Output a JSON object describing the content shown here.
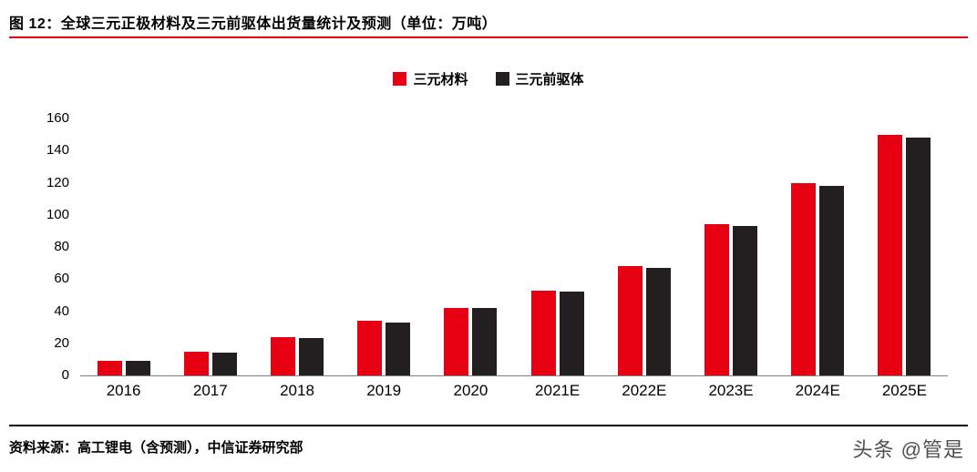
{
  "figure": {
    "title": "图 12：全球三元正极材料及三元前驱体出货量统计及预测（单位：万吨）",
    "source": "资料来源：高工锂电（含预测），中信证券研究部",
    "accent_color": "#e60012"
  },
  "watermark": {
    "text": "头条 @管是"
  },
  "chart_data": {
    "type": "bar",
    "title": "全球三元正极材料及三元前驱体出货量统计及预测",
    "unit": "万吨",
    "categories": [
      "2016",
      "2017",
      "2018",
      "2019",
      "2020",
      "2021E",
      "2022E",
      "2023E",
      "2024E",
      "2025E"
    ],
    "series": [
      {
        "name": "三元材料",
        "color": "#e60012",
        "values": [
          9,
          15,
          24,
          34,
          42,
          53,
          68,
          94,
          120,
          150
        ]
      },
      {
        "name": "三元前驱体",
        "color": "#231f20",
        "values": [
          9,
          14,
          23,
          33,
          42,
          52,
          67,
          93,
          118,
          148
        ]
      }
    ],
    "xlabel": "",
    "ylabel": "",
    "ylim": [
      0,
      160
    ],
    "yticks": [
      0,
      20,
      40,
      60,
      80,
      100,
      120,
      140,
      160
    ],
    "grid": false,
    "legend_position": "top-center"
  }
}
